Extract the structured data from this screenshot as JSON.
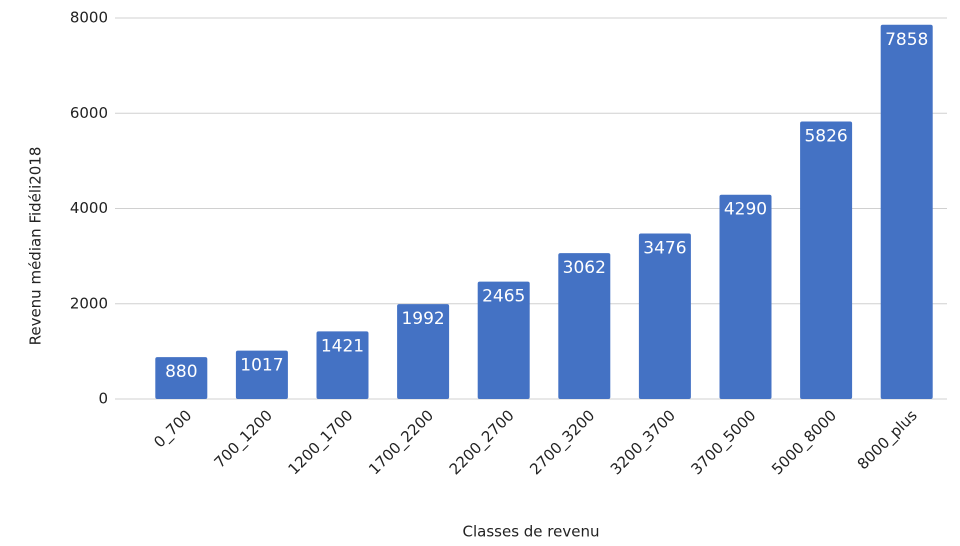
{
  "chart_data": {
    "type": "bar",
    "x_label": "Classes de revenu",
    "y_label": "Revenu médian Fidéli2018",
    "categories": [
      "0_700",
      "700_1200",
      "1200_1700",
      "1700_2200",
      "2200_2700",
      "2700_3200",
      "3200_3700",
      "3700_5000",
      "5000_8000",
      "8000_plus"
    ],
    "values": [
      880,
      1017,
      1421,
      1992,
      2465,
      3062,
      3476,
      4290,
      5826,
      7858
    ],
    "color": "#4472c4",
    "ylim": [
      0,
      8000
    ],
    "yticks": [
      0,
      2000,
      4000,
      6000,
      8000
    ],
    "grid": true
  }
}
